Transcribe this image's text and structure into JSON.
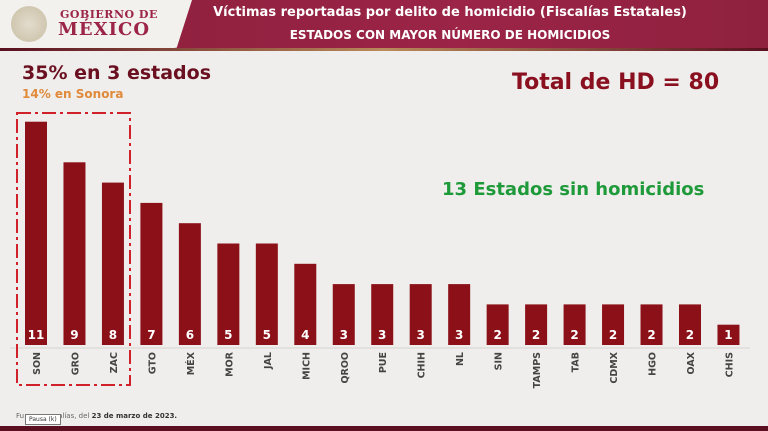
{
  "header": {
    "logo_line1": "GOBIERNO DE",
    "logo_line2": "MÉXICO",
    "title": "Víctimas reportadas por delito de homicidio (Fiscalías Estatales)",
    "subtitle": "ESTADOS CON MAYOR NÚMERO DE HOMICIDIOS"
  },
  "annotations": {
    "share": "35% en 3 estados",
    "sonora": "14% en Sonora",
    "total": "Total de HD = 80",
    "zero_states": "13 Estados sin homicidios"
  },
  "footer": {
    "prefix": "Fu",
    "middle": "alías, del ",
    "date": "23 de marzo de 2023.",
    "tooltip": "Pausa (k)"
  },
  "colors": {
    "bar": "#8c1018",
    "header": "#9b2447",
    "highlight_box": "#d0202a",
    "sonora": "#e08a3a",
    "zero_states": "#1f9a3a"
  },
  "chart_data": {
    "type": "bar",
    "title": "ESTADOS CON MAYOR NÚMERO DE HOMICIDIOS",
    "categories": [
      "SON",
      "GRO",
      "ZAC",
      "GTO",
      "MÉX",
      "MOR",
      "JAL",
      "MICH",
      "QROO",
      "PUE",
      "CHIH",
      "NL",
      "SIN",
      "TAMPS",
      "TAB",
      "CDMX",
      "HGO",
      "OAX",
      "CHIS"
    ],
    "values": [
      11,
      9,
      8,
      7,
      6,
      5,
      5,
      4,
      3,
      3,
      3,
      3,
      2,
      2,
      2,
      2,
      2,
      2,
      1
    ],
    "data_labels": "inside-bottom",
    "highlighted_categories": [
      "SON",
      "GRO",
      "ZAC"
    ],
    "grid": false,
    "legend": "none"
  }
}
